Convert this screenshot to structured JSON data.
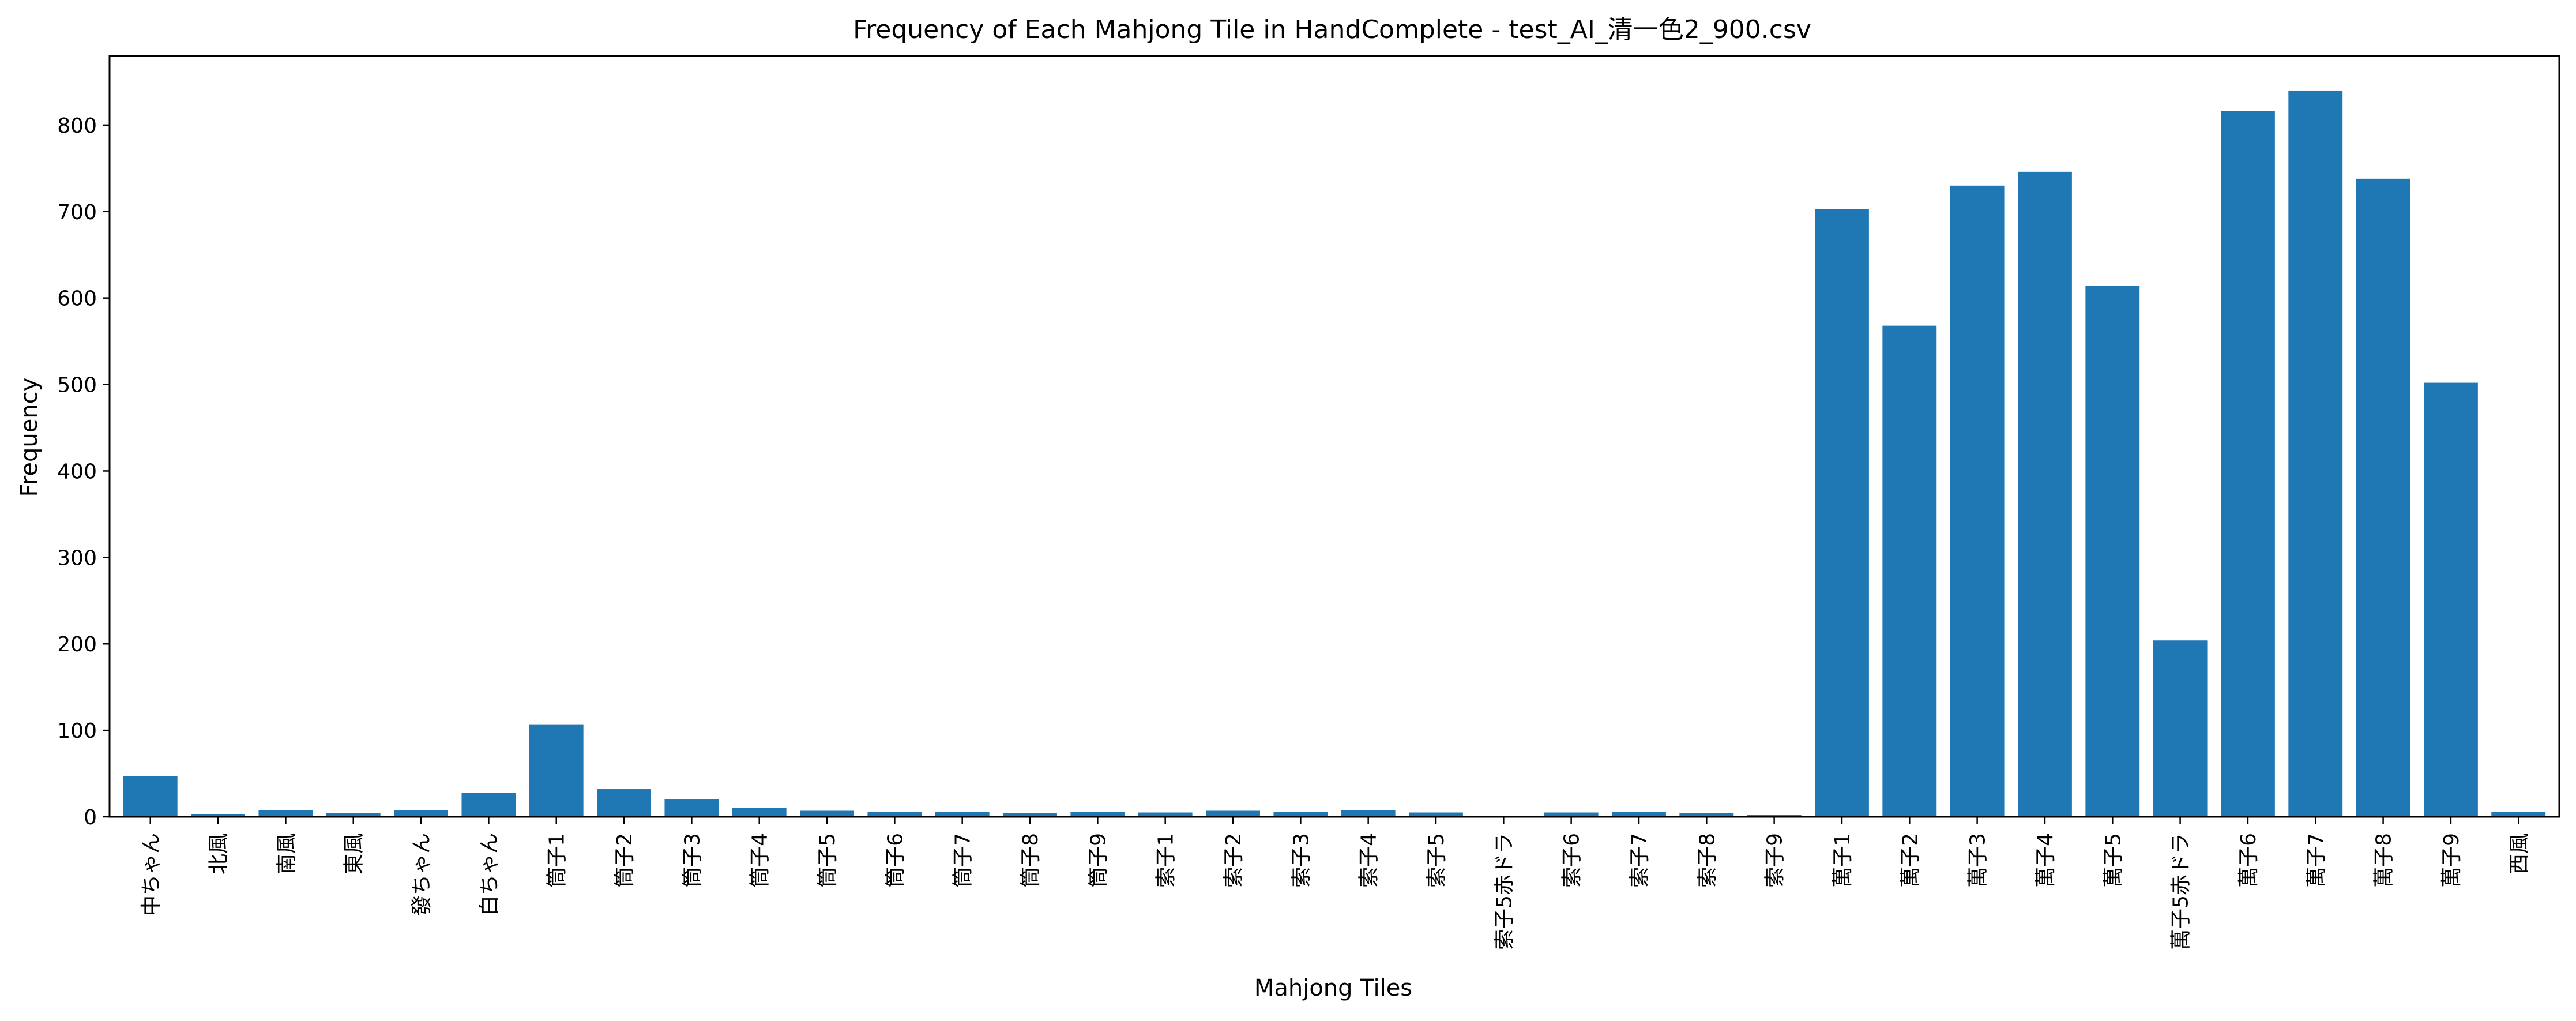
{
  "chart_data": {
    "type": "bar",
    "title": "Frequency of Each Mahjong Tile in HandComplete - test_AI_清一色2_900.csv",
    "xlabel": "Mahjong Tiles",
    "ylabel": "Frequency",
    "ylim": [
      0,
      880
    ],
    "yticks": [
      0,
      100,
      200,
      300,
      400,
      500,
      600,
      700,
      800
    ],
    "grid": false,
    "legend": "none",
    "bar_color": "#1f77b4",
    "categories": [
      "中ちゃん",
      "北風",
      "南風",
      "東風",
      "發ちゃん",
      "白ちゃん",
      "筒子1",
      "筒子2",
      "筒子3",
      "筒子4",
      "筒子5",
      "筒子6",
      "筒子7",
      "筒子8",
      "筒子9",
      "索子1",
      "索子2",
      "索子3",
      "索子4",
      "索子5",
      "索子5赤ドラ",
      "索子6",
      "索子7",
      "索子8",
      "索子9",
      "萬子1",
      "萬子2",
      "萬子3",
      "萬子4",
      "萬子5",
      "萬子5赤ドラ",
      "萬子6",
      "萬子7",
      "萬子8",
      "萬子9",
      "西風"
    ],
    "values": [
      47,
      3,
      8,
      4,
      8,
      28,
      107,
      32,
      20,
      10,
      7,
      6,
      6,
      4,
      6,
      5,
      7,
      6,
      8,
      5,
      0,
      5,
      6,
      4,
      2,
      703,
      568,
      730,
      746,
      614,
      204,
      816,
      840,
      738,
      502,
      6
    ]
  }
}
